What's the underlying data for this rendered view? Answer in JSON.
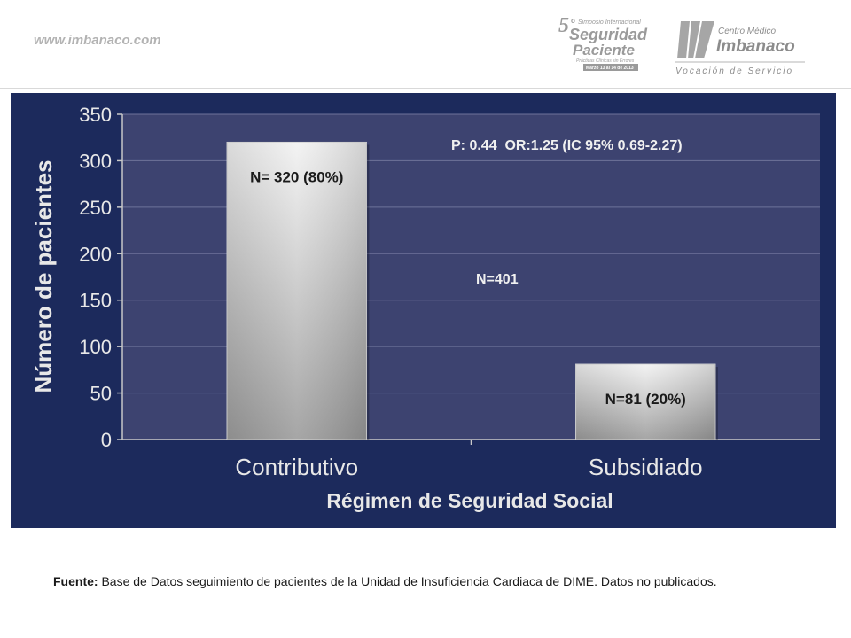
{
  "header": {
    "site_url": "www.imbanaco.com",
    "symposium_logo": {
      "number": "5",
      "ordinal": "o",
      "line1": "Simposio Internacional",
      "line2": "Seguridad",
      "line3": "Paciente",
      "line4": "Prácticas Clínicas sin Errores",
      "dates": "Marzo 13 al 14 de 2013"
    },
    "imbanaco_logo": {
      "line1": "Centro Médico",
      "line2": "Imbanaco",
      "tagline": "Vocación de Servicio"
    }
  },
  "colors": {
    "panel_background": "#1c2a5c",
    "plot_background": "#3d4370",
    "bar_light": "#f2f2f2",
    "bar_dark": "#9c9c9c",
    "text_light": "#e8e8e8",
    "bar_label": "#1a1a1a"
  },
  "chart_data": {
    "type": "bar",
    "categories": [
      "Contributivo",
      "Subsidiado"
    ],
    "values": [
      320,
      81
    ],
    "data_labels": [
      "N= 320 (80%)",
      "N=81 (20%)"
    ],
    "xlabel": "Régimen de Seguridad Social",
    "ylabel": "Número de pacientes",
    "ylim": [
      0,
      350
    ],
    "yticks": [
      0,
      50,
      100,
      150,
      200,
      250,
      300,
      350
    ],
    "grid": true,
    "annotations": [
      "P: 0.44  OR:1.25 (IC 95% 0.69-2.27)",
      "N=401"
    ]
  },
  "footnote": {
    "label": "Fuente:",
    "text": " Base de Datos  seguimiento de pacientes de la Unidad de  Insuficiencia Cardiaca de DIME. Datos no publicados."
  }
}
